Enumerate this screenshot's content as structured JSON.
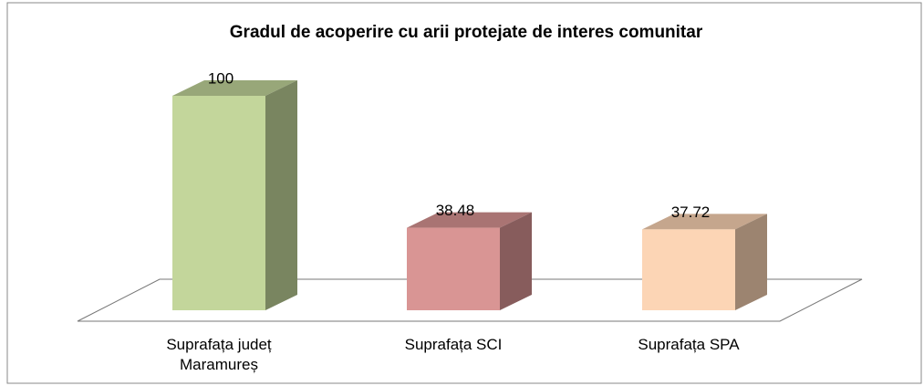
{
  "chart_data": {
    "type": "bar3d",
    "title": "Gradul de acoperire cu arii protejate de interes comunitar",
    "categories": [
      "Suprafața județ Maramureș",
      "Suprafața SCI",
      "Suprafața SPA"
    ],
    "values": [
      100,
      38.48,
      37.72
    ],
    "colors": [
      "#c3d69b",
      "#d99594",
      "#fcd5b5"
    ]
  }
}
